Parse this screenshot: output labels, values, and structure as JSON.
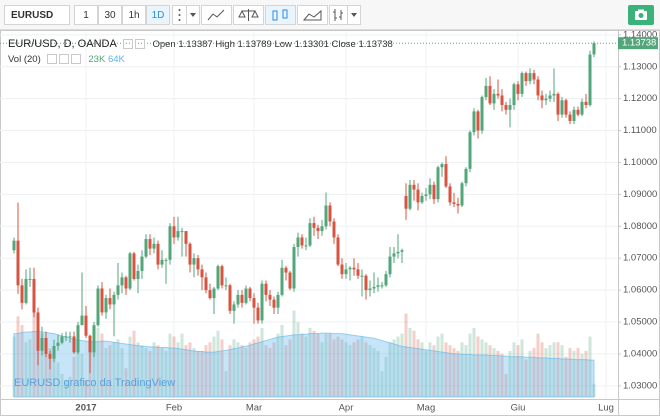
{
  "toolbar": {
    "symbol": "EURUSD",
    "intervals": [
      "1",
      "30",
      "1h",
      "1D"
    ],
    "active_interval": 3
  },
  "chart_data": {
    "type": "candlestick",
    "title": "EUR/USD, D, OANDA",
    "ohlc_labels": [
      "Open",
      "High",
      "Low",
      "Close"
    ],
    "categories": [
      null,
      null,
      null,
      null,
      null,
      null,
      null,
      null,
      null,
      null,
      null,
      null,
      null,
      null,
      null,
      null,
      null,
      null,
      "2017",
      null,
      null,
      null,
      null,
      null,
      null,
      null,
      null,
      null,
      null,
      null,
      null,
      null,
      null,
      null,
      null,
      null,
      null,
      null,
      null,
      null,
      "Feb",
      null,
      null,
      null,
      null,
      null,
      null,
      null,
      null,
      null,
      null,
      null,
      null,
      null,
      null,
      null,
      null,
      null,
      null,
      null,
      "Mar",
      null,
      null,
      null,
      null,
      null,
      null,
      null,
      null,
      null,
      null,
      null,
      null,
      null,
      null,
      null,
      null,
      null,
      null,
      null,
      null,
      null,
      null,
      "Apr",
      null,
      null,
      null,
      null,
      null,
      null,
      null,
      null,
      null,
      null,
      null,
      null,
      null,
      null,
      null,
      null,
      null,
      null,
      null,
      "Mag",
      null,
      null,
      null,
      null,
      null,
      null,
      null,
      null,
      null,
      null,
      null,
      null,
      null,
      null,
      null,
      null,
      null,
      null,
      null,
      null,
      null,
      null,
      "Giu",
      null,
      null,
      null,
      null,
      null,
      null,
      null,
      null,
      null,
      null,
      null,
      null,
      null,
      null,
      null,
      null,
      null,
      null,
      null,
      null,
      null,
      "Lug"
    ],
    "ohlc": [
      [
        1.0725,
        1.0765,
        1.0715,
        1.0755
      ],
      [
        1.0755,
        1.0874,
        1.0588,
        1.0615
      ],
      [
        1.0615,
        1.0635,
        1.054,
        1.056
      ],
      [
        1.056,
        1.0665,
        1.0555,
        1.0635
      ],
      [
        1.0635,
        1.067,
        1.061,
        1.0635
      ],
      [
        1.0635,
        1.067,
        1.0515,
        1.053
      ],
      [
        1.053,
        1.0545,
        1.0365,
        1.041
      ],
      [
        1.041,
        1.0485,
        1.0395,
        1.045
      ],
      [
        1.045,
        1.047,
        1.039,
        1.04
      ],
      [
        1.04,
        1.041,
        1.0352,
        1.0385
      ],
      [
        1.0385,
        1.0445,
        1.0375,
        1.0425
      ],
      [
        1.0425,
        1.046,
        1.041,
        1.0435
      ],
      [
        1.0435,
        1.0465,
        1.043,
        1.0455
      ],
      [
        1.0455,
        1.047,
        1.044,
        1.0455
      ],
      [
        1.0455,
        1.047,
        1.0435,
        1.0455
      ],
      [
        1.0455,
        1.047,
        1.04,
        1.0405
      ],
      [
        1.0405,
        1.05,
        1.04,
        1.049
      ],
      [
        1.049,
        1.0655,
        1.049,
        1.052
      ],
      [
        1.052,
        1.055,
        1.045,
        1.0457
      ],
      [
        1.0457,
        1.046,
        1.034,
        1.0405
      ],
      [
        1.0405,
        1.05,
        1.039,
        1.049
      ],
      [
        1.049,
        1.0615,
        1.0485,
        1.0605
      ],
      [
        1.0605,
        1.0625,
        1.052,
        1.053
      ],
      [
        1.053,
        1.0585,
        1.051,
        1.0575
      ],
      [
        1.0575,
        1.0605,
        1.054,
        1.0555
      ],
      [
        1.0555,
        1.0595,
        1.0455,
        1.0585
      ],
      [
        1.0585,
        1.0685,
        1.057,
        1.0615
      ],
      [
        1.0615,
        1.0655,
        1.059,
        1.064
      ],
      [
        1.064,
        1.0645,
        1.0585,
        1.0605
      ],
      [
        1.0605,
        1.072,
        1.06,
        1.0715
      ],
      [
        1.0715,
        1.072,
        1.063,
        1.0635
      ],
      [
        1.0635,
        1.068,
        1.059,
        1.066
      ],
      [
        1.066,
        1.0725,
        1.0635,
        1.0705
      ],
      [
        1.0705,
        1.0775,
        1.07,
        1.076
      ],
      [
        1.076,
        1.0775,
        1.071,
        1.073
      ],
      [
        1.073,
        1.0765,
        1.0715,
        1.0745
      ],
      [
        1.0745,
        1.0755,
        1.0665,
        1.068
      ],
      [
        1.068,
        1.0725,
        1.067,
        1.0695
      ],
      [
        1.0695,
        1.07,
        1.062,
        1.0695
      ],
      [
        1.0695,
        1.081,
        1.068,
        1.08
      ],
      [
        1.08,
        1.083,
        1.0745,
        1.0765
      ],
      [
        1.0765,
        1.083,
        1.0755,
        1.0785
      ],
      [
        1.0785,
        1.0795,
        1.0705,
        1.0785
      ],
      [
        1.0785,
        1.0785,
        1.0705,
        1.0745
      ],
      [
        1.0745,
        1.075,
        1.0655,
        1.068
      ],
      [
        1.068,
        1.0715,
        1.064,
        1.07
      ],
      [
        1.07,
        1.071,
        1.0645,
        1.0665
      ],
      [
        1.0665,
        1.068,
        1.06,
        1.064
      ],
      [
        1.064,
        1.0655,
        1.059,
        1.06
      ],
      [
        1.06,
        1.062,
        1.057,
        1.0575
      ],
      [
        1.0575,
        1.061,
        1.0525,
        1.0605
      ],
      [
        1.0605,
        1.068,
        1.06,
        1.0675
      ],
      [
        1.0675,
        1.068,
        1.0605,
        1.0615
      ],
      [
        1.0615,
        1.064,
        1.06,
        1.0615
      ],
      [
        1.0615,
        1.062,
        1.0525,
        1.0535
      ],
      [
        1.0535,
        1.0565,
        1.0495,
        1.0555
      ],
      [
        1.0555,
        1.06,
        1.0545,
        1.0585
      ],
      [
        1.0585,
        1.06,
        1.0545,
        1.056
      ],
      [
        1.056,
        1.0615,
        1.0555,
        1.0605
      ],
      [
        1.0605,
        1.061,
        1.0565,
        1.0575
      ],
      [
        1.0575,
        1.059,
        1.0495,
        1.0545
      ],
      [
        1.0545,
        1.056,
        1.0495,
        1.0505
      ],
      [
        1.0505,
        1.063,
        1.0495,
        1.062
      ],
      [
        1.062,
        1.063,
        1.0565,
        1.0585
      ],
      [
        1.0585,
        1.06,
        1.055,
        1.057
      ],
      [
        1.057,
        1.058,
        1.0525,
        1.0545
      ],
      [
        1.0545,
        1.0595,
        1.0525,
        1.0585
      ],
      [
        1.0585,
        1.0695,
        1.058,
        1.067
      ],
      [
        1.067,
        1.0675,
        1.063,
        1.0655
      ],
      [
        1.0655,
        1.066,
        1.06,
        1.0605
      ],
      [
        1.0605,
        1.0745,
        1.0595,
        1.0735
      ],
      [
        1.0735,
        1.078,
        1.0705,
        1.0765
      ],
      [
        1.0765,
        1.0775,
        1.073,
        1.074
      ],
      [
        1.074,
        1.0765,
        1.0725,
        1.074
      ],
      [
        1.074,
        1.0825,
        1.0735,
        1.081
      ],
      [
        1.081,
        1.083,
        1.077,
        1.0795
      ],
      [
        1.0795,
        1.0805,
        1.076,
        1.0785
      ],
      [
        1.0785,
        1.082,
        1.077,
        1.08
      ],
      [
        1.08,
        1.0906,
        1.079,
        1.0865
      ],
      [
        1.0865,
        1.0875,
        1.08,
        1.0815
      ],
      [
        1.0815,
        1.0825,
        1.0745,
        1.0765
      ],
      [
        1.0765,
        1.0775,
        1.0675,
        1.068
      ],
      [
        1.068,
        1.07,
        1.0635,
        1.065
      ],
      [
        1.065,
        1.0685,
        1.0635,
        1.0665
      ],
      [
        1.0665,
        1.0675,
        1.063,
        1.067
      ],
      [
        1.067,
        1.07,
        1.0645,
        1.0665
      ],
      [
        1.0665,
        1.0685,
        1.0635,
        1.0645
      ],
      [
        1.0645,
        1.0665,
        1.058,
        1.0645
      ],
      [
        1.0645,
        1.065,
        1.057,
        1.06
      ],
      [
        1.06,
        1.063,
        1.058,
        1.0605
      ],
      [
        1.0605,
        1.0655,
        1.059,
        1.061
      ],
      [
        1.061,
        1.064,
        1.0595,
        1.0615
      ],
      [
        1.0615,
        1.0625,
        1.0605,
        1.0615
      ],
      [
        1.0615,
        1.066,
        1.061,
        1.065
      ],
      [
        1.065,
        1.0735,
        1.064,
        1.0705
      ],
      [
        1.0705,
        1.0735,
        1.0685,
        1.0715
      ],
      [
        1.0715,
        1.0775,
        1.07,
        1.072
      ],
      [
        1.072,
        1.073,
        1.0685,
        1.0725
      ],
      [
        1.0895,
        1.0935,
        1.082,
        1.0855
      ],
      [
        1.0855,
        1.0945,
        1.085,
        1.093
      ],
      [
        1.093,
        1.0945,
        1.088,
        1.0915
      ],
      [
        1.0915,
        1.0935,
        1.085,
        1.0875
      ],
      [
        1.0875,
        1.0905,
        1.087,
        1.0895
      ],
      [
        1.0895,
        1.092,
        1.088,
        1.09
      ],
      [
        1.09,
        1.095,
        1.0885,
        1.093
      ],
      [
        1.093,
        1.094,
        1.087,
        1.0885
      ],
      [
        1.0885,
        1.099,
        1.0875,
        1.0985
      ],
      [
        1.0985,
        1.1,
        1.0955,
        1.0995
      ],
      [
        1.0995,
        1.102,
        1.092,
        1.0925
      ],
      [
        1.0925,
        1.0935,
        1.0865,
        1.0875
      ],
      [
        1.0875,
        1.0905,
        1.086,
        1.087
      ],
      [
        1.087,
        1.089,
        1.084,
        1.0865
      ],
      [
        1.0865,
        1.094,
        1.086,
        1.0935
      ],
      [
        1.0935,
        1.0985,
        1.0925,
        1.098
      ],
      [
        1.098,
        1.11,
        1.097,
        1.1095
      ],
      [
        1.1095,
        1.117,
        1.1085,
        1.116
      ],
      [
        1.116,
        1.1165,
        1.1075,
        1.11
      ],
      [
        1.11,
        1.121,
        1.109,
        1.1205
      ],
      [
        1.1205,
        1.1265,
        1.1195,
        1.124
      ],
      [
        1.124,
        1.127,
        1.118,
        1.1185
      ],
      [
        1.1185,
        1.123,
        1.1165,
        1.1215
      ],
      [
        1.1215,
        1.126,
        1.12,
        1.121
      ],
      [
        1.121,
        1.123,
        1.116,
        1.118
      ],
      [
        1.118,
        1.119,
        1.115,
        1.1165
      ],
      [
        1.1165,
        1.12,
        1.111,
        1.118
      ],
      [
        1.118,
        1.125,
        1.1165,
        1.1245
      ],
      [
        1.1245,
        1.1255,
        1.1195,
        1.1215
      ],
      [
        1.1215,
        1.1285,
        1.1205,
        1.128
      ],
      [
        1.128,
        1.1285,
        1.124,
        1.1255
      ],
      [
        1.1255,
        1.1295,
        1.1245,
        1.128
      ],
      [
        1.128,
        1.129,
        1.1245,
        1.126
      ],
      [
        1.126,
        1.127,
        1.1195,
        1.121
      ],
      [
        1.121,
        1.1225,
        1.117,
        1.1195
      ],
      [
        1.1195,
        1.1215,
        1.118,
        1.12
      ],
      [
        1.12,
        1.1225,
        1.119,
        1.121
      ],
      [
        1.121,
        1.1295,
        1.119,
        1.1215
      ],
      [
        1.1215,
        1.122,
        1.113,
        1.115
      ],
      [
        1.115,
        1.1205,
        1.114,
        1.1195
      ],
      [
        1.1195,
        1.12,
        1.114,
        1.115
      ],
      [
        1.115,
        1.116,
        1.112,
        1.113
      ],
      [
        1.113,
        1.1175,
        1.112,
        1.1165
      ],
      [
        1.1165,
        1.1175,
        1.1145,
        1.115
      ],
      [
        1.115,
        1.12,
        1.1145,
        1.119
      ],
      [
        1.119,
        1.1215,
        1.117,
        1.118
      ],
      [
        1.118,
        1.135,
        1.1175,
        1.1338
      ],
      [
        1.13387,
        1.13789,
        1.13301,
        1.13738
      ],
      null,
      null,
      null
    ],
    "up_color": "#53a67a",
    "down_color": "#d75442",
    "ylim": [
      1.0265,
      1.1412
    ],
    "yticks": [
      {
        "value": 1.03,
        "label": "1.03000"
      },
      {
        "value": 1.04,
        "label": "1.04000"
      },
      {
        "value": 1.05,
        "label": "1.05000"
      },
      {
        "value": 1.06,
        "label": "1.06000"
      },
      {
        "value": 1.07,
        "label": "1.07000"
      },
      {
        "value": 1.08,
        "label": "1.08000"
      },
      {
        "value": 1.09,
        "label": "1.09000"
      },
      {
        "value": 1.1,
        "label": "1.10000"
      },
      {
        "value": 1.11,
        "label": "1.11000"
      },
      {
        "value": 1.12,
        "label": "1.12000"
      },
      {
        "value": 1.13,
        "label": "1.13000"
      },
      {
        "value": 1.14,
        "label": "1.14000"
      }
    ],
    "grid": true,
    "volume": {
      "name": "Vol (20)",
      "values": [
        105,
        140,
        125,
        95,
        100,
        150,
        130,
        110,
        90,
        85,
        80,
        60,
        40,
        30,
        35,
        70,
        80,
        75,
        30,
        95,
        100,
        120,
        110,
        85,
        90,
        95,
        100,
        85,
        50,
        105,
        115,
        95,
        90,
        85,
        80,
        95,
        90,
        85,
        80,
        110,
        105,
        95,
        110,
        90,
        95,
        85,
        80,
        80,
        90,
        95,
        105,
        115,
        100,
        45,
        90,
        100,
        95,
        90,
        85,
        95,
        100,
        105,
        120,
        90,
        85,
        95,
        110,
        125,
        90,
        100,
        150,
        130,
        110,
        105,
        120,
        115,
        110,
        95,
        110,
        110,
        100,
        105,
        100,
        95,
        90,
        95,
        100,
        105,
        95,
        90,
        85,
        80,
        45,
        70,
        95,
        100,
        105,
        110,
        145,
        120,
        115,
        100,
        95,
        80,
        95,
        90,
        105,
        110,
        95,
        90,
        85,
        80,
        95,
        90,
        110,
        120,
        105,
        100,
        95,
        90,
        85,
        80,
        75,
        40,
        80,
        95,
        90,
        100,
        65,
        80,
        85,
        110,
        95,
        85,
        90,
        95,
        95,
        90,
        70,
        85,
        80,
        85,
        75,
        80,
        105,
        23,
        null,
        null,
        null
      ],
      "value_label": "23K",
      "ma": [
        110,
        110,
        112,
        113,
        113,
        114,
        114,
        113,
        112,
        111,
        110,
        108,
        106,
        104,
        102,
        100,
        99,
        98,
        97,
        96,
        96,
        96,
        97,
        97,
        96,
        95,
        94,
        93,
        92,
        91,
        90,
        89,
        88,
        88,
        87,
        87,
        86,
        86,
        86,
        85,
        85,
        84,
        83,
        82,
        81,
        80,
        79,
        79,
        78,
        78,
        78,
        79,
        80,
        81,
        82,
        84,
        85,
        87,
        88,
        90,
        92,
        94,
        96,
        98,
        100,
        102,
        104,
        105,
        106,
        107,
        108,
        108,
        109,
        109,
        110,
        110,
        110,
        111,
        111,
        111,
        110,
        110,
        110,
        109,
        108,
        107,
        106,
        105,
        104,
        103,
        102,
        100,
        98,
        96,
        94,
        92,
        90,
        88,
        87,
        86,
        85,
        84,
        83,
        82,
        81,
        80,
        79,
        78,
        77,
        76,
        75,
        75,
        74,
        74,
        74,
        73,
        73,
        73,
        73,
        72,
        72,
        72,
        71,
        71,
        70,
        70,
        70,
        70,
        69,
        69,
        69,
        68,
        68,
        68,
        67,
        67,
        67,
        66,
        66,
        66,
        65,
        65,
        65,
        65,
        64,
        64,
        null,
        null,
        null
      ],
      "ma_value_label": "64K",
      "ma_color": "#5fb4ec",
      "vlim": [
        0,
        165
      ]
    }
  },
  "watermark": "EURUSD grafico da TradingView"
}
